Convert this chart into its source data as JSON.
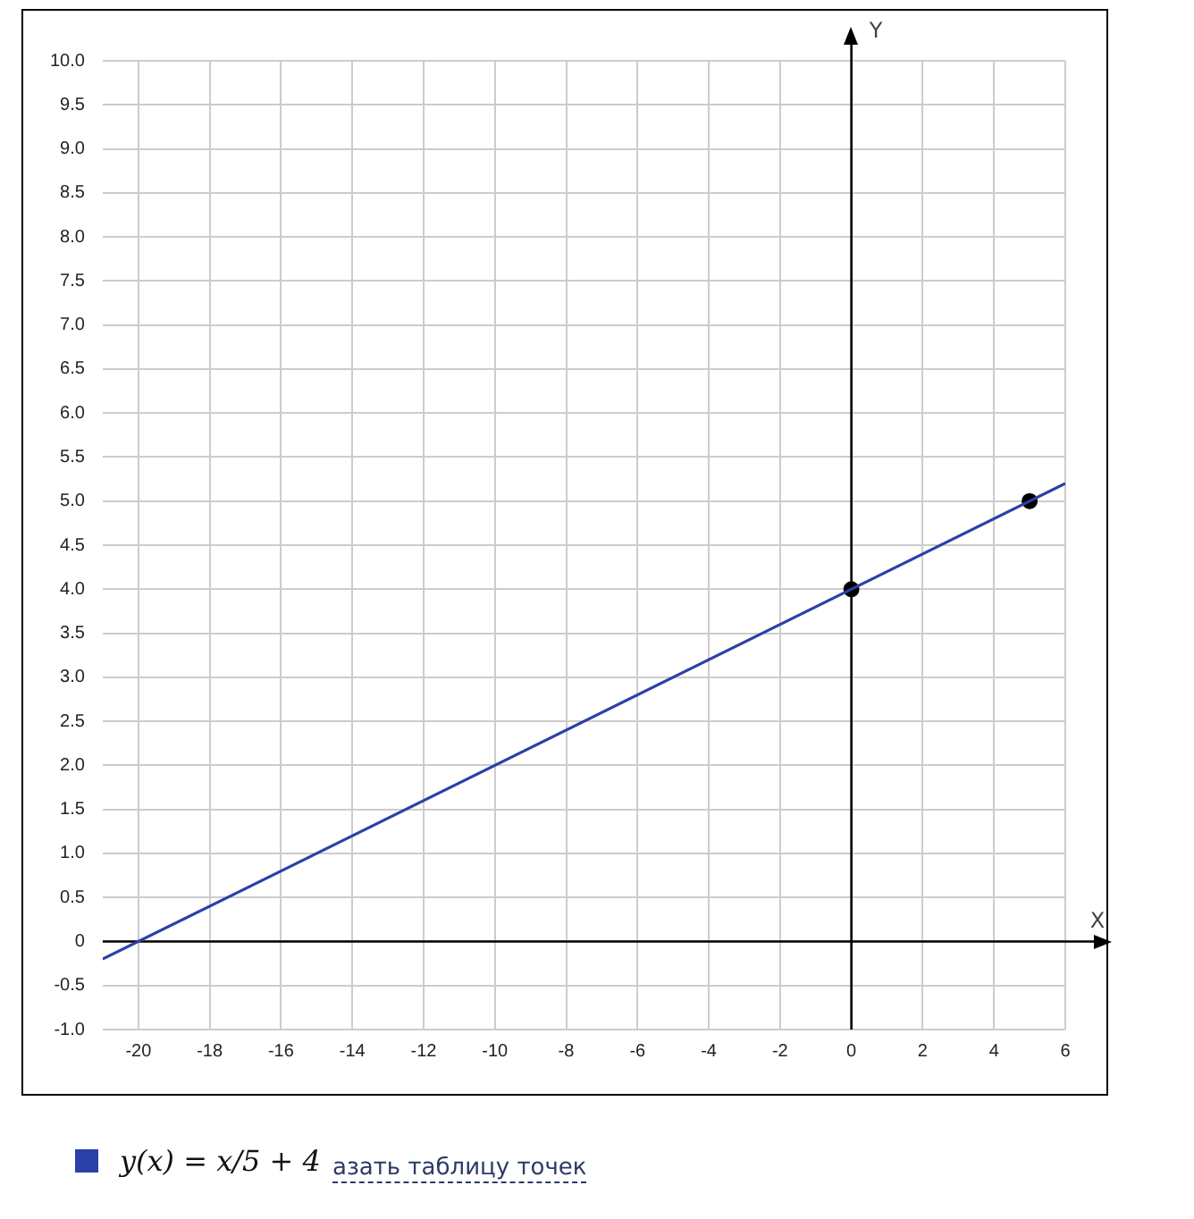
{
  "chart_data": {
    "type": "line",
    "xlabel": "X",
    "ylabel": "Y",
    "xlim": [
      -21,
      6
    ],
    "xticks": [
      -20,
      -18,
      -16,
      -14,
      -12,
      -10,
      -8,
      -6,
      -4,
      -2,
      0,
      2,
      4,
      6
    ],
    "ylim": [
      -1,
      10
    ],
    "yticks": [
      {
        "value": 10,
        "label": "10.0"
      },
      {
        "value": 9.5,
        "label": "9.5"
      },
      {
        "value": 9,
        "label": "9.0"
      },
      {
        "value": 8.5,
        "label": "8.5"
      },
      {
        "value": 8,
        "label": "8.0"
      },
      {
        "value": 7.5,
        "label": "7.5"
      },
      {
        "value": 7,
        "label": "7.0"
      },
      {
        "value": 6.5,
        "label": "6.5"
      },
      {
        "value": 6,
        "label": "6.0"
      },
      {
        "value": 5.5,
        "label": "5.5"
      },
      {
        "value": 5,
        "label": "5.0"
      },
      {
        "value": 4.5,
        "label": "4.5"
      },
      {
        "value": 4,
        "label": "4.0"
      },
      {
        "value": 3.5,
        "label": "3.5"
      },
      {
        "value": 3,
        "label": "3.0"
      },
      {
        "value": 2.5,
        "label": "2.5"
      },
      {
        "value": 2,
        "label": "2.0"
      },
      {
        "value": 1.5,
        "label": "1.5"
      },
      {
        "value": 1,
        "label": "1.0"
      },
      {
        "value": 0.5,
        "label": "0.5"
      },
      {
        "value": 0,
        "label": "0"
      },
      {
        "value": -0.5,
        "label": "-0.5"
      },
      {
        "value": -1,
        "label": "-1.0"
      }
    ],
    "grid": true,
    "legend": "bottom",
    "marker": "none",
    "series": [
      {
        "name": "y(x) = x/5 + 4",
        "color": "#2b40a8",
        "x": [
          -21,
          6
        ],
        "values": [
          -0.2,
          5.2
        ]
      },
      {
        "type": "scatter",
        "marker": "circle",
        "color": "#000000",
        "x": [
          0,
          5
        ],
        "values": [
          4,
          5
        ]
      }
    ],
    "annotations": [
      "азать таблицу точек"
    ]
  }
}
